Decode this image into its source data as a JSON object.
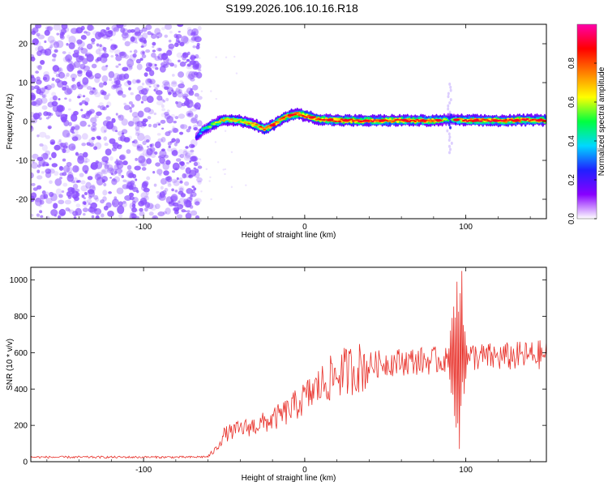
{
  "title": "S199.2026.106.10.16.R18",
  "colors": {
    "snr_line": "#e8312a",
    "scatter": "#8a4dff",
    "axis": "#000000"
  },
  "chart_data": [
    {
      "type": "heatmap",
      "xlabel": "Height of straight line (km)",
      "ylabel": "Frequency (Hz)",
      "xlim": [
        -170,
        150
      ],
      "ylim": [
        -25,
        25
      ],
      "xticks": [
        -100,
        0,
        100
      ],
      "xtick_labels": [
        "-100",
        "0",
        "100"
      ],
      "yticks": [
        20,
        10,
        0,
        -10,
        -20
      ],
      "ytick_labels": [
        "20",
        "10",
        "0",
        "-10",
        "-20"
      ],
      "noise_region_x": [
        -170,
        -65
      ],
      "ridge": {
        "x": [
          -67,
          -63,
          -58,
          -50,
          -40,
          -30,
          -25,
          -20,
          -15,
          -10,
          -5,
          0,
          10,
          20,
          40,
          60,
          80,
          90,
          100,
          120,
          140,
          150
        ],
        "freq": [
          -4,
          -2,
          -1,
          0.5,
          0.2,
          -1,
          -2,
          -1,
          0.5,
          1.5,
          2,
          1.5,
          0.5,
          0.3,
          0.2,
          0.3,
          0.2,
          0.5,
          0.3,
          0.2,
          0.4,
          0.3
        ],
        "amplitude": [
          0.25,
          0.45,
          0.6,
          0.75,
          0.7,
          0.8,
          0.85,
          0.8,
          0.85,
          0.9,
          0.9,
          0.88,
          0.9,
          0.92,
          0.9,
          0.88,
          0.9,
          0.5,
          0.9,
          0.92,
          0.9,
          0.88
        ]
      },
      "artifact": {
        "x": 90,
        "freq_range": [
          -8,
          10
        ]
      },
      "colorbar": {
        "label": "Normalized spectral amplitude",
        "range": [
          0,
          1
        ],
        "ticks": [
          0.0,
          0.2,
          0.4,
          0.6,
          0.8
        ],
        "tick_labels": [
          "0.0",
          "0.2",
          "0.4",
          "0.6",
          "0.8"
        ],
        "colors": [
          "#ffffff",
          "#8800ff",
          "#2020ff",
          "#00d8ff",
          "#00ff40",
          "#ffff00",
          "#ff8000",
          "#ff0000",
          "#ff00aa"
        ]
      }
    },
    {
      "type": "line",
      "xlabel": "Height of straight line (km)",
      "ylabel": "SNR (10 * v/v)",
      "xlim": [
        -170,
        150
      ],
      "ylim": [
        0,
        1070
      ],
      "xticks": [
        -100,
        0,
        100
      ],
      "xtick_labels": [
        "-100",
        "0",
        "100"
      ],
      "yticks": [
        0,
        200,
        400,
        600,
        800,
        1000
      ],
      "ytick_labels": [
        "0",
        "200",
        "400",
        "600",
        "800",
        "1000"
      ],
      "trend": {
        "x": [
          -170,
          -70,
          -60,
          -55,
          -50,
          -40,
          -30,
          -20,
          -10,
          0,
          10,
          20,
          30,
          40,
          50,
          60,
          70,
          80,
          85,
          90,
          92,
          95,
          98,
          100,
          105,
          110,
          120,
          130,
          140,
          150
        ],
        "y": [
          25,
          25,
          28,
          70,
          150,
          180,
          200,
          230,
          280,
          350,
          420,
          480,
          510,
          530,
          545,
          550,
          555,
          555,
          560,
          570,
          580,
          560,
          580,
          570,
          580,
          575,
          575,
          580,
          585,
          590
        ]
      },
      "burst": {
        "x_range": [
          88,
          102
        ],
        "peak": 1050,
        "trough": 70
      }
    }
  ]
}
